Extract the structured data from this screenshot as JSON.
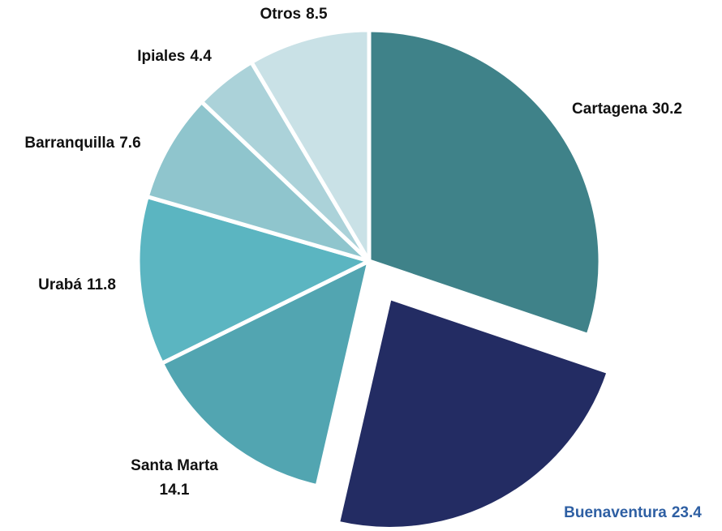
{
  "chart_data": {
    "type": "pie",
    "categories": [
      "Cartagena",
      "Buenaventura",
      "Santa Marta",
      "Urabá",
      "Barranquilla",
      "Ipiales",
      "Otros"
    ],
    "values": [
      30.2,
      23.4,
      14.1,
      11.8,
      7.6,
      4.4,
      8.5
    ],
    "colors": [
      "#3f8289",
      "#232c63",
      "#52a5b1",
      "#5bb5c1",
      "#8fc5cd",
      "#abd2d9",
      "#c9e1e6"
    ],
    "explode": [
      false,
      true,
      false,
      false,
      false,
      false,
      false
    ],
    "label_colors": [
      "#111111",
      "#2e5fa3",
      "#111111",
      "#111111",
      "#111111",
      "#111111",
      "#111111"
    ]
  }
}
